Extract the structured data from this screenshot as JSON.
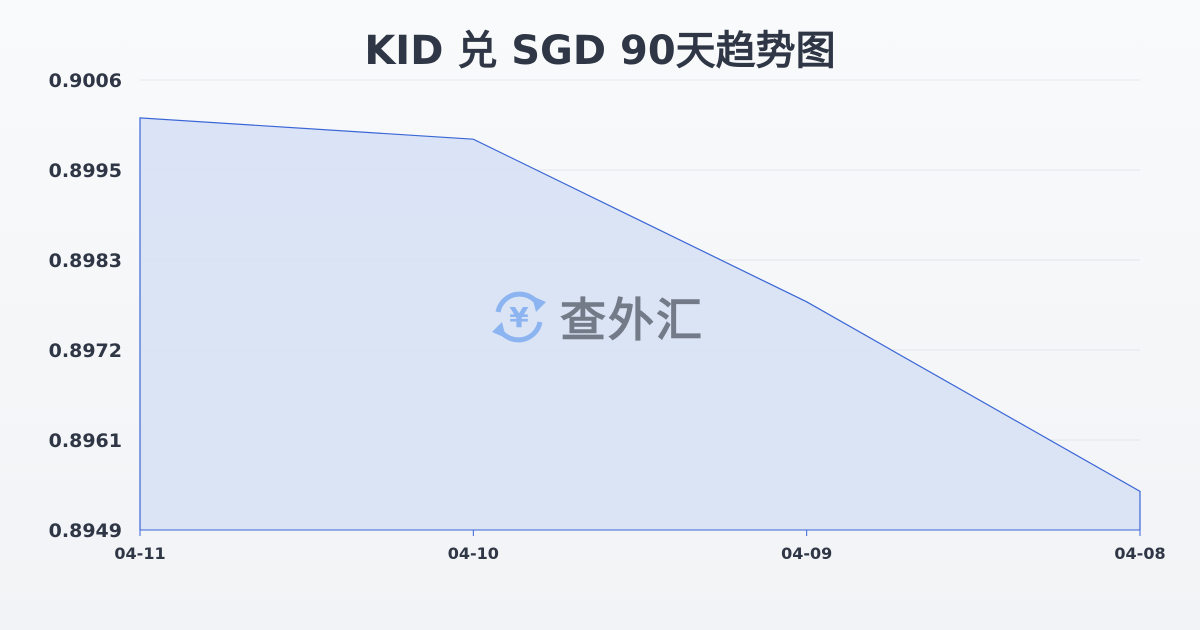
{
  "chart_data": {
    "type": "area",
    "title": "KID 兑 SGD 90天趋势图",
    "xlabel": "",
    "ylabel": "",
    "categories": [
      "04-11",
      "04-10",
      "04-09",
      "04-08"
    ],
    "series": [
      {
        "values": [
          0.90012,
          0.89985,
          0.89779,
          0.89539
        ]
      }
    ],
    "yticks": [
      "0.9006",
      "0.8995",
      "0.8983",
      "0.8972",
      "0.8961",
      "0.8949"
    ],
    "ylim": [
      0.8949,
      0.9006
    ],
    "grid": true,
    "colors": {
      "line": "#3a66d6",
      "fill": "#d6e0f5",
      "grid": "#e3e6eb",
      "text": "#2f3645"
    }
  },
  "watermark": {
    "text": "查外汇",
    "icon": "yen-exchange-icon",
    "icon_color": "#8cb4f0"
  }
}
